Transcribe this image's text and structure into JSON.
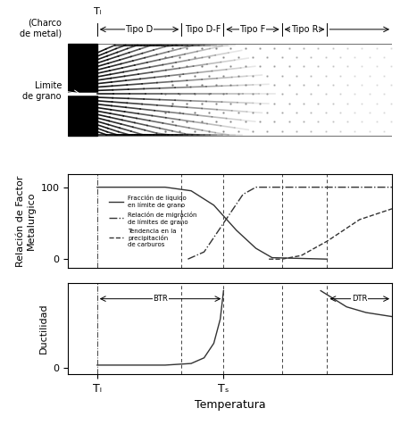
{
  "zones": {
    "liquidus_label": "Tₗ",
    "pool_label": "(Charco\nde metal)",
    "grain_boundary_label": "Limite\nde grano",
    "labels": [
      "Tipo D",
      "Tipo D-F",
      "Tipo F",
      "Tipo R"
    ],
    "boundaries": [
      9,
      35,
      48,
      66,
      80
    ]
  },
  "chart_data": [
    {
      "type": "line",
      "ylabel": "Relación de Factor\nMetalurgico",
      "xlim": [
        0,
        100
      ],
      "ylim": [
        -12,
        118
      ],
      "yticks": [
        0,
        100
      ],
      "tick_labels": "y",
      "legend": "center left",
      "series": [
        {
          "name": "Fracción de líquido\nen límite de grano",
          "color": "#333333",
          "line_style": "solid",
          "x": [
            9,
            30,
            38,
            45,
            52,
            58,
            63,
            80
          ],
          "values": [
            100,
            100,
            95,
            75,
            40,
            15,
            2,
            0
          ]
        },
        {
          "name": "Relación de migración\nde límites de grano",
          "color": "#333333",
          "line_style": "dashdot",
          "x": [
            37,
            42,
            48,
            54,
            58,
            100
          ],
          "values": [
            0,
            10,
            50,
            90,
            100,
            100
          ]
        },
        {
          "name": "Tendencia en la\nprecipitación\nde carburos",
          "color": "#333333",
          "line_style": "dashed",
          "x": [
            62,
            66,
            72,
            80,
            90,
            100
          ],
          "values": [
            0,
            0,
            5,
            25,
            55,
            70
          ]
        }
      ]
    },
    {
      "type": "line",
      "ylabel": "Ductilidad",
      "xlabel": "Temperatura",
      "xlim": [
        0,
        100
      ],
      "ylim": [
        -8,
        105
      ],
      "xticks": [
        {
          "value": 9,
          "label": "Tₗ"
        },
        {
          "value": 48,
          "label": "Tₛ"
        }
      ],
      "yticks": [
        0
      ],
      "annotations": [
        {
          "text": "BTR",
          "x": [
            9,
            48
          ],
          "y": 85
        },
        {
          "text": "DTR",
          "x": [
            80,
            100
          ],
          "y": 85
        }
      ],
      "series": [
        {
          "color": "#333333",
          "line_style": "solid",
          "x": [
            9,
            20,
            30,
            38,
            42,
            45,
            47,
            48
          ],
          "values": [
            3,
            3,
            3,
            5,
            12,
            30,
            60,
            95
          ]
        },
        {
          "color": "#333333",
          "line_style": "solid",
          "x": [
            78,
            82,
            86,
            92,
            100
          ],
          "values": [
            95,
            85,
            75,
            68,
            63
          ]
        }
      ]
    }
  ]
}
